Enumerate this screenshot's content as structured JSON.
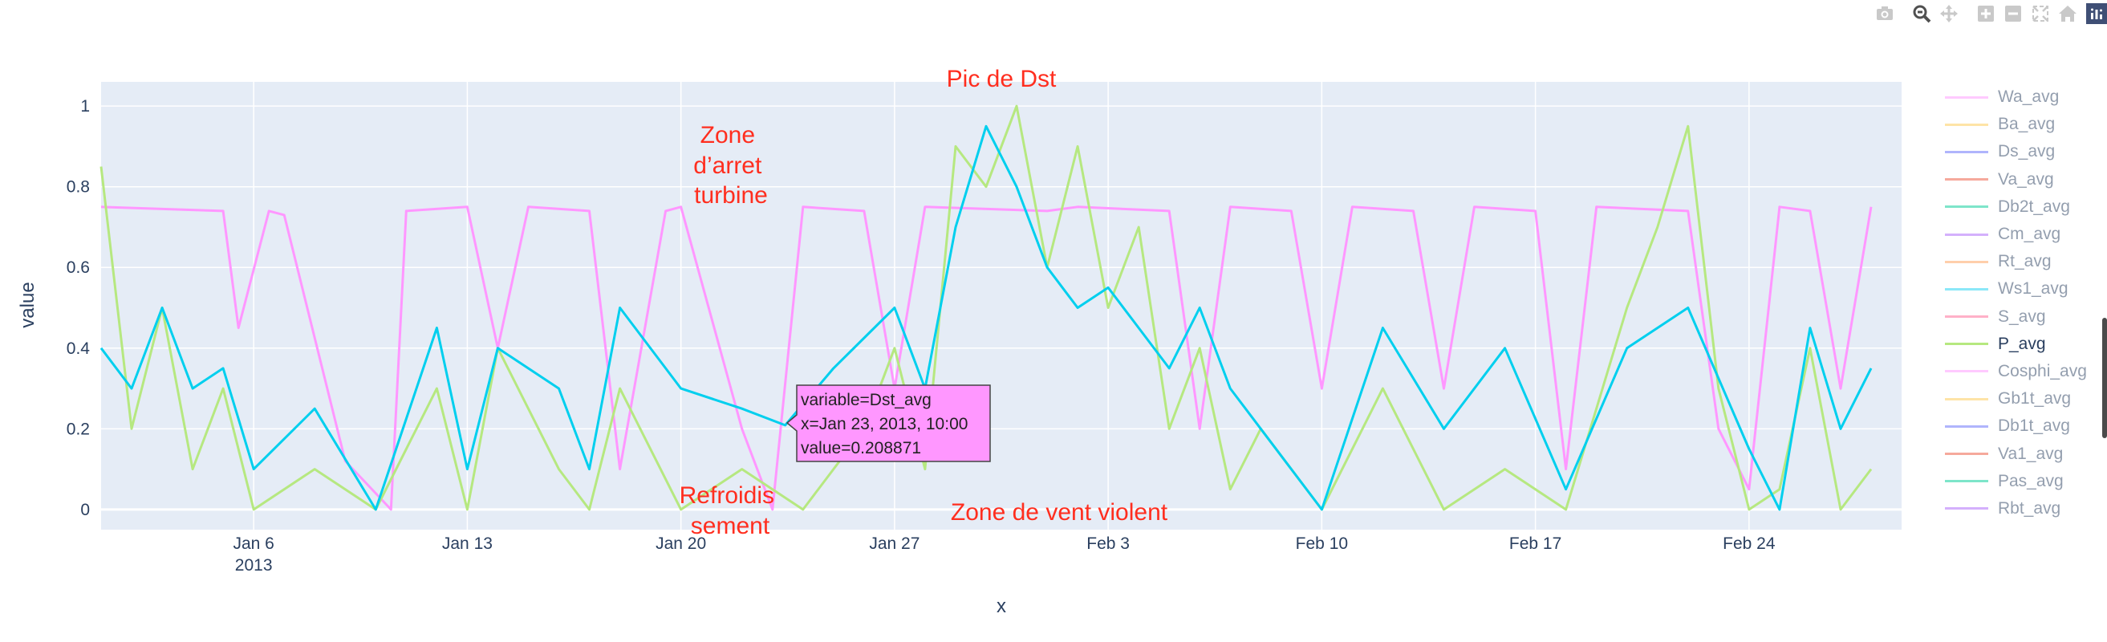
{
  "toolbar": {
    "buttons": [
      "camera-icon",
      "zoom-icon",
      "pan-icon",
      "zoom-in-icon",
      "zoom-out-icon",
      "autoscale-icon",
      "home-icon"
    ],
    "logo": "plotly-logo-icon"
  },
  "chart_data": {
    "type": "line",
    "title": "",
    "xlabel": "x",
    "ylabel": "value",
    "xlim": [
      "2013-01-01 00:00",
      "2013-02-28 23:59"
    ],
    "ylim": [
      -0.05,
      1.06
    ],
    "x_tick_labels": [
      {
        "label": "Jan 6",
        "sublabel": "2013",
        "date": "2013-01-06"
      },
      {
        "label": "Jan 13",
        "sublabel": "",
        "date": "2013-01-13"
      },
      {
        "label": "Jan 20",
        "sublabel": "",
        "date": "2013-01-20"
      },
      {
        "label": "Jan 27",
        "sublabel": "",
        "date": "2013-01-27"
      },
      {
        "label": "Feb 3",
        "sublabel": "",
        "date": "2013-02-03"
      },
      {
        "label": "Feb 10",
        "sublabel": "",
        "date": "2013-02-10"
      },
      {
        "label": "Feb 17",
        "sublabel": "",
        "date": "2013-02-17"
      },
      {
        "label": "Feb 24",
        "sublabel": "",
        "date": "2013-02-24"
      }
    ],
    "y_ticks": [
      0,
      0.2,
      0.4,
      0.6,
      0.8,
      1
    ],
    "y_tick_labels": [
      "0",
      "0.2",
      "0.4",
      "0.6",
      "0.8",
      "1"
    ],
    "grid": true,
    "legend_position": "right",
    "series": [
      {
        "name": "Wa_avg",
        "color": "#ff97ff",
        "x": [
          "2013-01-01",
          "2013-01-05",
          "2013-01-05 12:00",
          "2013-01-06 12:00",
          "2013-01-07",
          "2013-01-09",
          "2013-01-10 12:00",
          "2013-01-11",
          "2013-01-13",
          "2013-01-14",
          "2013-01-15",
          "2013-01-17",
          "2013-01-18",
          "2013-01-19 12:00",
          "2013-01-20",
          "2013-01-22",
          "2013-01-23",
          "2013-01-24",
          "2013-01-26",
          "2013-01-27",
          "2013-01-28",
          "2013-02-01",
          "2013-02-02",
          "2013-02-05",
          "2013-02-06",
          "2013-02-07",
          "2013-02-09",
          "2013-02-10",
          "2013-02-11",
          "2013-02-13",
          "2013-02-14",
          "2013-02-15",
          "2013-02-17",
          "2013-02-18",
          "2013-02-19",
          "2013-02-22",
          "2013-02-23",
          "2013-02-24",
          "2013-02-25",
          "2013-02-26",
          "2013-02-27",
          "2013-02-28"
        ],
        "values": [
          0.75,
          0.74,
          0.45,
          0.74,
          0.73,
          0.12,
          0.0,
          0.74,
          0.75,
          0.4,
          0.75,
          0.74,
          0.1,
          0.74,
          0.75,
          0.2,
          0.0,
          0.75,
          0.74,
          0.3,
          0.75,
          0.74,
          0.75,
          0.74,
          0.2,
          0.75,
          0.74,
          0.3,
          0.75,
          0.74,
          0.3,
          0.75,
          0.74,
          0.1,
          0.75,
          0.74,
          0.2,
          0.05,
          0.75,
          0.74,
          0.3,
          0.75
        ]
      },
      {
        "name": "Ba_avg",
        "color": "#fecb52",
        "x": [],
        "values": []
      },
      {
        "name": "Ds_avg",
        "color": "#636efa",
        "x": [],
        "values": []
      },
      {
        "name": "Va_avg",
        "color": "#ef553b",
        "x": [],
        "values": []
      },
      {
        "name": "Db2t_avg",
        "color": "#00cc96",
        "x": [],
        "values": []
      },
      {
        "name": "Cm_avg",
        "color": "#ab63fa",
        "x": [],
        "values": []
      },
      {
        "name": "Rt_avg",
        "color": "#ffa15a",
        "x": [],
        "values": []
      },
      {
        "name": "Ws1_avg",
        "color": "#19d3f3",
        "x": [],
        "values": []
      },
      {
        "name": "S_avg",
        "color": "#ff6692",
        "x": [],
        "values": []
      },
      {
        "name": "P_avg",
        "color": "#b6e880",
        "x": [
          "2013-01-01",
          "2013-01-02",
          "2013-01-03",
          "2013-01-04",
          "2013-01-05",
          "2013-01-06",
          "2013-01-08",
          "2013-01-10",
          "2013-01-12",
          "2013-01-13",
          "2013-01-14",
          "2013-01-16",
          "2013-01-17",
          "2013-01-18",
          "2013-01-20",
          "2013-01-22",
          "2013-01-24",
          "2013-01-26",
          "2013-01-27",
          "2013-01-28",
          "2013-01-29",
          "2013-01-30",
          "2013-01-31",
          "2013-02-01",
          "2013-02-02",
          "2013-02-03",
          "2013-02-04",
          "2013-02-05",
          "2013-02-06",
          "2013-02-07",
          "2013-02-08",
          "2013-02-10",
          "2013-02-12",
          "2013-02-14",
          "2013-02-16",
          "2013-02-18",
          "2013-02-20",
          "2013-02-21",
          "2013-02-22",
          "2013-02-23",
          "2013-02-24",
          "2013-02-25",
          "2013-02-26",
          "2013-02-27",
          "2013-02-28"
        ],
        "values": [
          0.85,
          0.2,
          0.5,
          0.1,
          0.3,
          0.0,
          0.1,
          0.0,
          0.3,
          0.0,
          0.4,
          0.1,
          0.0,
          0.3,
          0.0,
          0.1,
          0.0,
          0.2,
          0.4,
          0.1,
          0.9,
          0.8,
          1.0,
          0.6,
          0.9,
          0.5,
          0.7,
          0.2,
          0.4,
          0.05,
          0.2,
          0.0,
          0.3,
          0.0,
          0.1,
          0.0,
          0.5,
          0.7,
          0.95,
          0.3,
          0.0,
          0.05,
          0.4,
          0.0,
          0.1
        ]
      },
      {
        "name": "Cosphi_avg",
        "color": "#ff97ff",
        "x": [],
        "values": []
      },
      {
        "name": "Gb1t_avg",
        "color": "#fecb52",
        "x": [],
        "values": []
      },
      {
        "name": "Db1t_avg",
        "color": "#636efa",
        "x": [],
        "values": []
      },
      {
        "name": "Va1_avg",
        "color": "#ef553b",
        "x": [],
        "values": []
      },
      {
        "name": "Pas_avg",
        "color": "#00cc96",
        "x": [],
        "values": []
      },
      {
        "name": "Rbt_avg",
        "color": "#ab63fa",
        "x": [],
        "values": []
      },
      {
        "name": "Dst_avg",
        "color": "#00cfee",
        "x": [
          "2013-01-01",
          "2013-01-02",
          "2013-01-03",
          "2013-01-04",
          "2013-01-05",
          "2013-01-06",
          "2013-01-08",
          "2013-01-10",
          "2013-01-12",
          "2013-01-13",
          "2013-01-14",
          "2013-01-16",
          "2013-01-17",
          "2013-01-18",
          "2013-01-20",
          "2013-01-22",
          "2013-01-23 10:00",
          "2013-01-25",
          "2013-01-27",
          "2013-01-28",
          "2013-01-29",
          "2013-01-30",
          "2013-01-31",
          "2013-02-01",
          "2013-02-02",
          "2013-02-03",
          "2013-02-04",
          "2013-02-05",
          "2013-02-06",
          "2013-02-07",
          "2013-02-08",
          "2013-02-10",
          "2013-02-12",
          "2013-02-14",
          "2013-02-16",
          "2013-02-18",
          "2013-02-20",
          "2013-02-22",
          "2013-02-24",
          "2013-02-25",
          "2013-02-26",
          "2013-02-27",
          "2013-02-28"
        ],
        "values": [
          0.4,
          0.3,
          0.5,
          0.3,
          0.35,
          0.1,
          0.25,
          0.0,
          0.45,
          0.1,
          0.4,
          0.3,
          0.1,
          0.5,
          0.3,
          0.25,
          0.208871,
          0.35,
          0.5,
          0.3,
          0.7,
          0.95,
          0.8,
          0.6,
          0.5,
          0.55,
          0.45,
          0.35,
          0.5,
          0.3,
          0.2,
          0.0,
          0.45,
          0.2,
          0.4,
          0.05,
          0.4,
          0.5,
          0.15,
          0.0,
          0.45,
          0.2,
          0.35
        ]
      }
    ],
    "annotations": [
      {
        "text": "Pic de Dst"
      },
      {
        "text": "Zone\nd’arret\nturbine"
      },
      {
        "text": "Refroidis\nsement"
      },
      {
        "text": "Zone de vent violent"
      }
    ],
    "hover": {
      "lines": [
        "variable=Dst_avg",
        "x=Jan 23, 2013, 10:00",
        "value=0.208871"
      ]
    }
  }
}
